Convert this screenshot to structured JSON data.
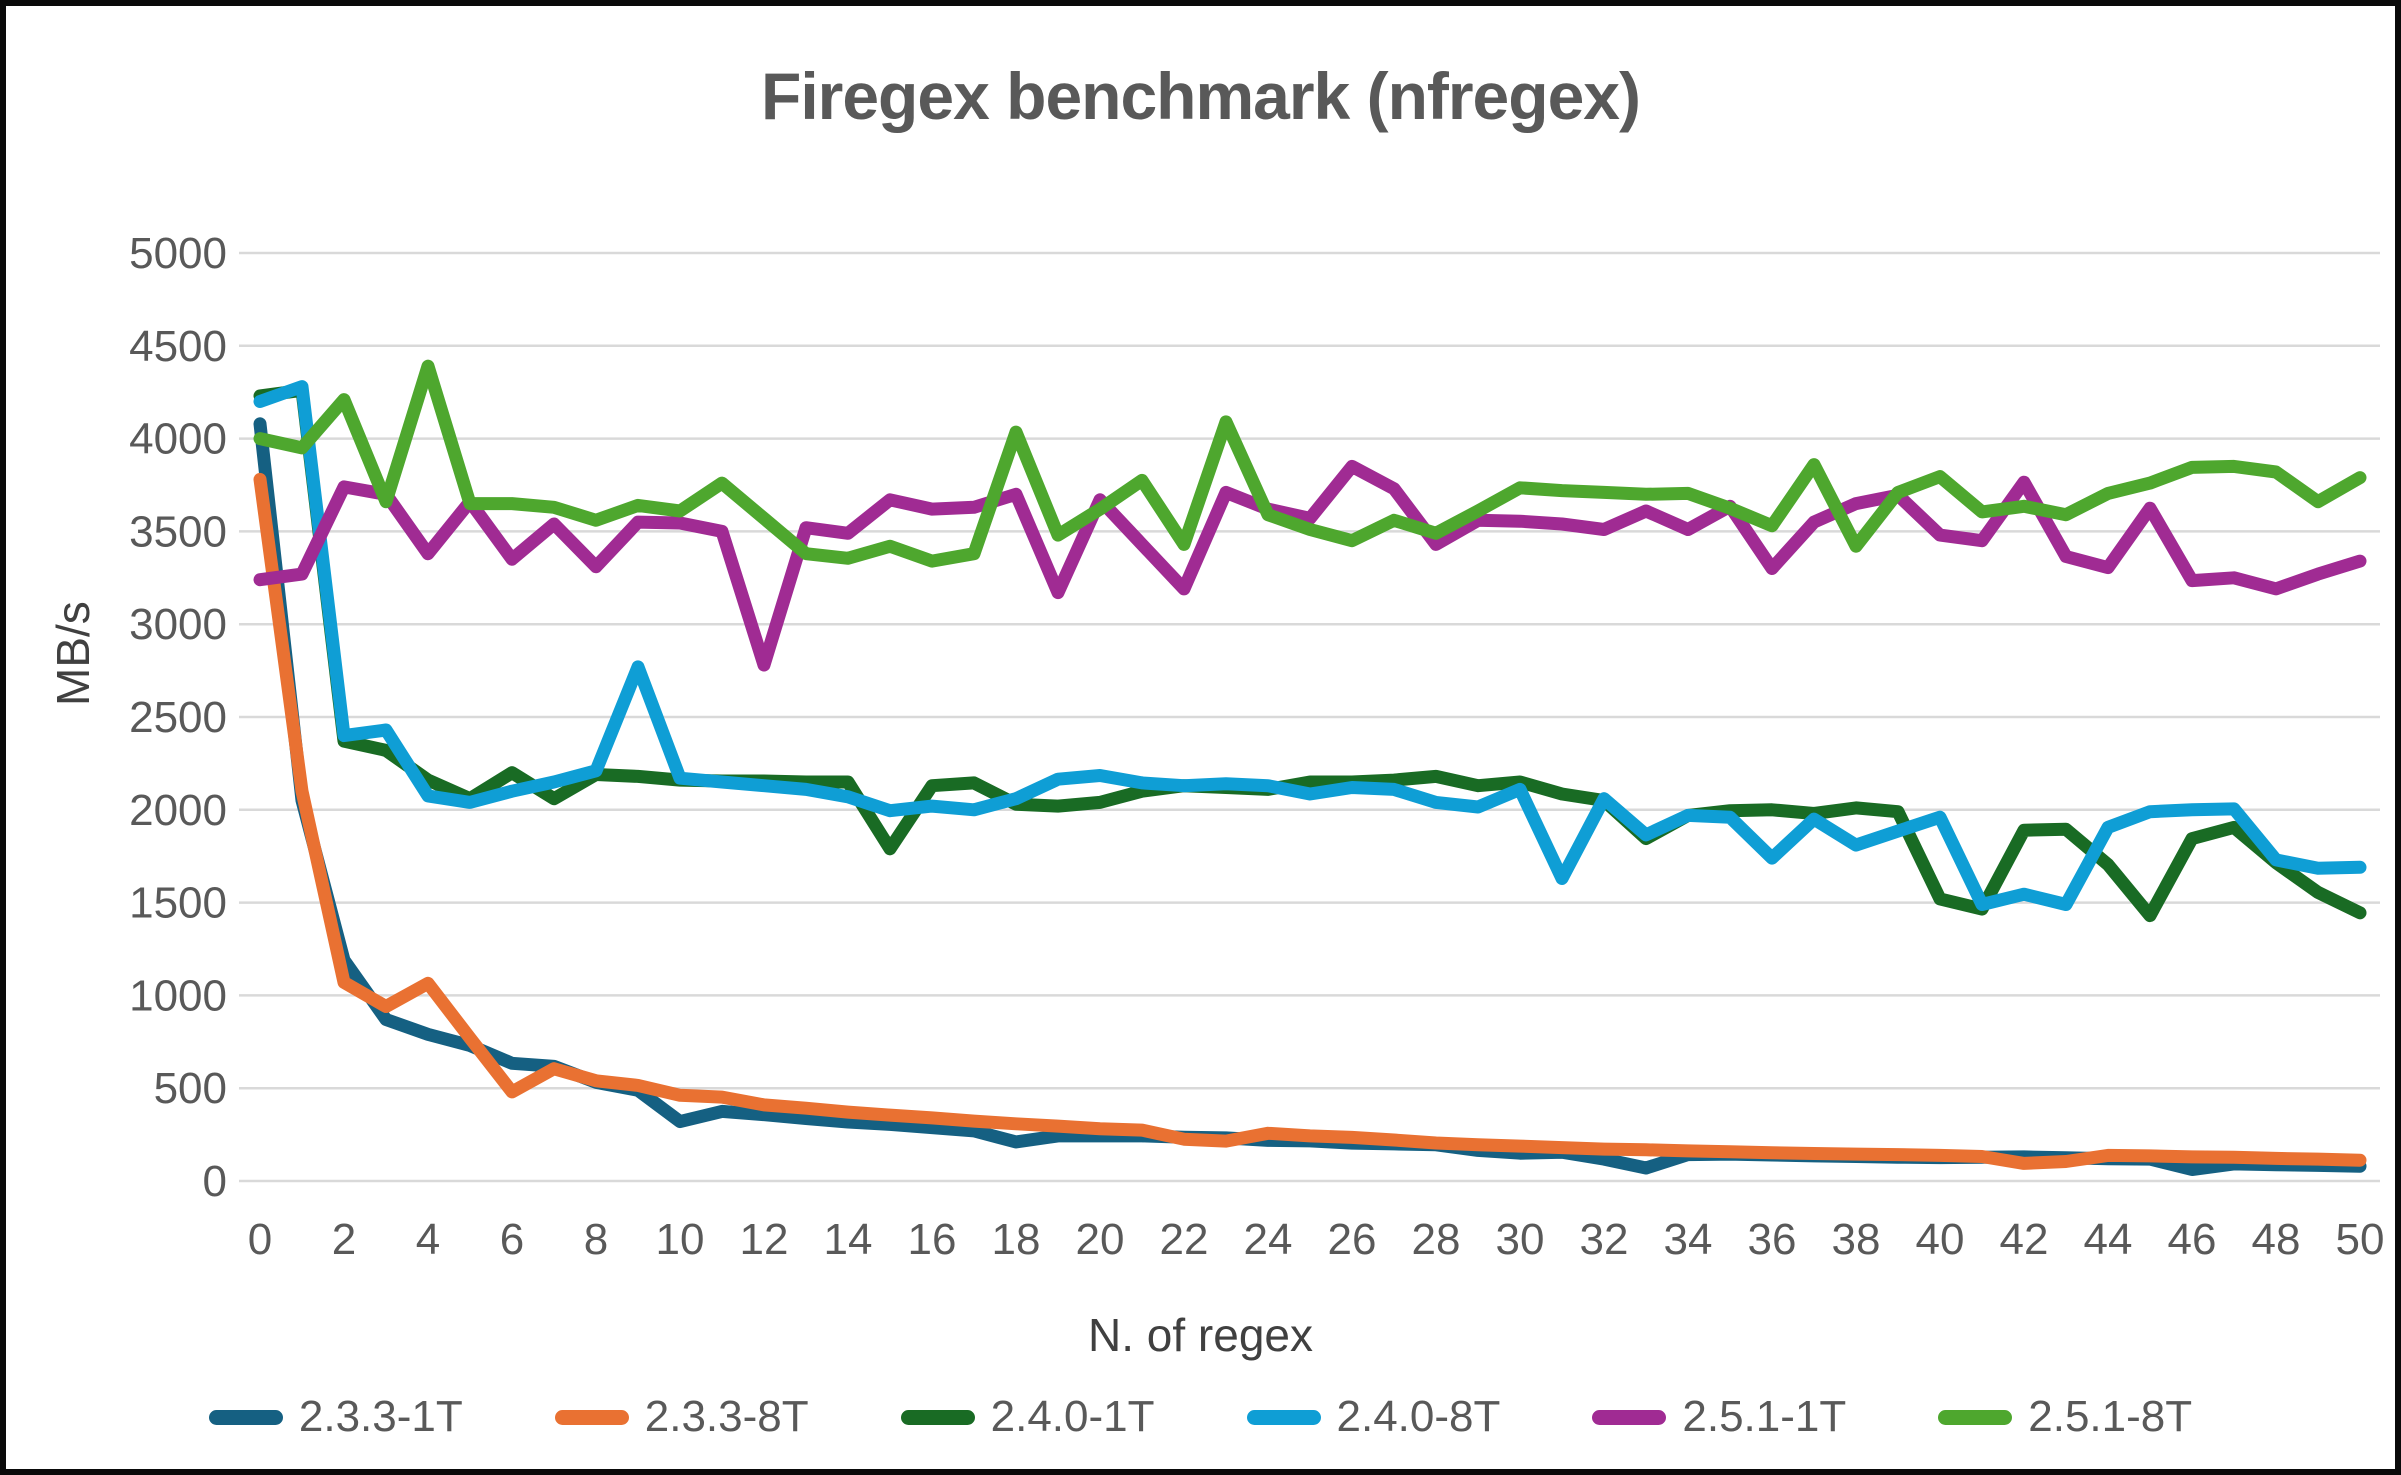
{
  "window": {
    "background": "#ffffff",
    "border_color": "#0a0a0a"
  },
  "chart_data": {
    "type": "line",
    "title": "Firegex benchmark (nfregex)",
    "xlabel": "N. of regex",
    "ylabel": "MB/s",
    "xlim": [
      0,
      50
    ],
    "ylim": [
      0,
      5000
    ],
    "grid": "horizontal",
    "grid_color": "#d9d9d9",
    "tick_label_color": "#595959",
    "title_color": "#595959",
    "legend_position": "bottom",
    "x_ticks": [
      0,
      2,
      4,
      6,
      8,
      10,
      12,
      14,
      16,
      18,
      20,
      22,
      24,
      26,
      28,
      30,
      32,
      34,
      36,
      38,
      40,
      42,
      44,
      46,
      48,
      50
    ],
    "y_ticks": [
      0,
      500,
      1000,
      1500,
      2000,
      2500,
      3000,
      3500,
      4000,
      4500,
      5000
    ],
    "x": [
      0,
      1,
      2,
      3,
      4,
      5,
      6,
      7,
      8,
      9,
      10,
      11,
      12,
      13,
      14,
      15,
      16,
      17,
      18,
      19,
      20,
      21,
      22,
      23,
      24,
      25,
      26,
      27,
      28,
      29,
      30,
      31,
      32,
      33,
      34,
      35,
      36,
      37,
      38,
      39,
      40,
      41,
      42,
      43,
      44,
      45,
      46,
      47,
      48,
      49,
      50
    ],
    "series": [
      {
        "name": "2.3.3-1T",
        "color": "#156082",
        "values": [
          4080,
          2050,
          1190,
          870,
          790,
          730,
          634,
          618,
          532,
          489,
          320,
          375,
          357,
          337,
          318,
          305,
          287,
          270,
          210,
          243,
          243,
          243,
          236,
          232,
          219,
          216,
          204,
          200,
          195,
          165,
          150,
          155,
          118,
          70,
          142,
          145,
          140,
          135,
          132,
          128,
          126,
          128,
          130,
          125,
          120,
          118,
          62,
          92,
          88,
          84,
          80
        ]
      },
      {
        "name": "2.3.3-8T",
        "color": "#E97132",
        "values": [
          3780,
          2100,
          1070,
          940,
          1065,
          770,
          480,
          605,
          540,
          515,
          462,
          452,
          410,
          392,
          371,
          355,
          340,
          323,
          308,
          296,
          282,
          274,
          225,
          215,
          257,
          243,
          235,
          221,
          205,
          195,
          188,
          180,
          172,
          168,
          162,
          158,
          152,
          148,
          145,
          142,
          138,
          132,
          95,
          105,
          138,
          135,
          130,
          128,
          122,
          118,
          112
        ]
      },
      {
        "name": "2.4.0-1T",
        "color": "#196B24",
        "values": [
          4230,
          4260,
          2370,
          2320,
          2160,
          2060,
          2200,
          2060,
          2190,
          2180,
          2160,
          2155,
          2155,
          2150,
          2150,
          1790,
          2130,
          2145,
          2030,
          2020,
          2040,
          2100,
          2130,
          2120,
          2110,
          2150,
          2150,
          2160,
          2180,
          2130,
          2150,
          2085,
          2050,
          1845,
          1970,
          1995,
          2000,
          1980,
          2010,
          1990,
          1520,
          1465,
          1890,
          1895,
          1705,
          1430,
          1845,
          1905,
          1715,
          1555,
          1445
        ]
      },
      {
        "name": "2.4.0-8T",
        "color": "#0F9ED5",
        "values": [
          4200,
          4280,
          2400,
          2430,
          2075,
          2040,
          2100,
          2150,
          2210,
          2770,
          2170,
          2150,
          2130,
          2110,
          2070,
          1995,
          2020,
          2000,
          2060,
          2165,
          2185,
          2145,
          2130,
          2140,
          2130,
          2085,
          2120,
          2110,
          2040,
          2015,
          2110,
          1630,
          2060,
          1865,
          1970,
          1960,
          1740,
          1950,
          1810,
          1885,
          1960,
          1490,
          1545,
          1490,
          1905,
          1990,
          2000,
          2005,
          1730,
          1685,
          1690
        ]
      },
      {
        "name": "2.5.1-1T",
        "color": "#A02B93",
        "values": [
          3240,
          3270,
          3740,
          3700,
          3380,
          3660,
          3350,
          3540,
          3310,
          3550,
          3545,
          3500,
          2780,
          3520,
          3490,
          3670,
          3620,
          3630,
          3700,
          3170,
          3670,
          3430,
          3190,
          3710,
          3620,
          3570,
          3850,
          3730,
          3430,
          3560,
          3555,
          3540,
          3510,
          3610,
          3510,
          3635,
          3300,
          3550,
          3650,
          3695,
          3480,
          3450,
          3765,
          3365,
          3305,
          3625,
          3235,
          3250,
          3190,
          3270,
          3340
        ]
      },
      {
        "name": "2.5.1-8T",
        "color": "#4EA72E",
        "values": [
          4000,
          3950,
          4210,
          3660,
          4390,
          3650,
          3650,
          3630,
          3560,
          3640,
          3610,
          3760,
          3570,
          3380,
          3355,
          3420,
          3340,
          3380,
          4035,
          3480,
          3620,
          3775,
          3430,
          4090,
          3590,
          3510,
          3450,
          3560,
          3490,
          3610,
          3735,
          3720,
          3710,
          3700,
          3705,
          3625,
          3530,
          3860,
          3420,
          3710,
          3795,
          3605,
          3635,
          3590,
          3705,
          3760,
          3845,
          3850,
          3820,
          3660,
          3790
        ]
      }
    ]
  }
}
